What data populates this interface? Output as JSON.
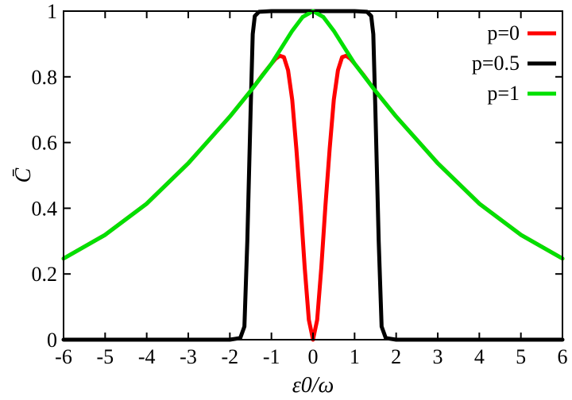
{
  "chart_data": {
    "type": "line",
    "title": "",
    "xlabel": "ε0/ω",
    "ylabel": "C̄",
    "xlim": [
      -6,
      6
    ],
    "ylim": [
      0,
      1
    ],
    "xticks": [
      -6,
      -5,
      -4,
      -3,
      -2,
      -1,
      0,
      1,
      2,
      3,
      4,
      5,
      6
    ],
    "yticks": [
      0,
      0.2,
      0.4,
      0.6,
      0.8,
      1
    ],
    "ytick_labels": [
      "0",
      "0.2",
      "0.4",
      "0.6",
      "0.8",
      "1"
    ],
    "grid": false,
    "legend_position": "top-right",
    "series": [
      {
        "name": "p=0",
        "color": "#ff0000",
        "points": [
          [
            -6,
            0.247
          ],
          [
            -5,
            0.319
          ],
          [
            -4,
            0.414
          ],
          [
            -3,
            0.537
          ],
          [
            -2,
            0.679
          ],
          [
            -1.5,
            0.757
          ],
          [
            -1.2,
            0.808
          ],
          [
            -1,
            0.84
          ],
          [
            -0.9,
            0.855
          ],
          [
            -0.8,
            0.864
          ],
          [
            -0.7,
            0.86
          ],
          [
            -0.6,
            0.82
          ],
          [
            -0.5,
            0.73
          ],
          [
            -0.4,
            0.58
          ],
          [
            -0.3,
            0.41
          ],
          [
            -0.2,
            0.22
          ],
          [
            -0.1,
            0.06
          ],
          [
            0,
            0.0
          ],
          [
            0.1,
            0.06
          ],
          [
            0.2,
            0.22
          ],
          [
            0.3,
            0.41
          ],
          [
            0.4,
            0.58
          ],
          [
            0.5,
            0.73
          ],
          [
            0.6,
            0.82
          ],
          [
            0.7,
            0.86
          ],
          [
            0.8,
            0.864
          ],
          [
            0.9,
            0.855
          ],
          [
            1,
            0.84
          ],
          [
            1.2,
            0.808
          ],
          [
            1.5,
            0.757
          ],
          [
            2,
            0.679
          ],
          [
            3,
            0.537
          ],
          [
            4,
            0.414
          ],
          [
            5,
            0.319
          ],
          [
            6,
            0.247
          ]
        ]
      },
      {
        "name": "p=0.5",
        "color": "#000000",
        "points": [
          [
            -6,
            0.0
          ],
          [
            -2,
            0.0
          ],
          [
            -1.75,
            0.005
          ],
          [
            -1.65,
            0.04
          ],
          [
            -1.58,
            0.3
          ],
          [
            -1.5,
            0.7
          ],
          [
            -1.45,
            0.93
          ],
          [
            -1.4,
            0.985
          ],
          [
            -1.3,
            0.998
          ],
          [
            -1,
            1.0
          ],
          [
            0,
            1.0
          ],
          [
            1,
            1.0
          ],
          [
            1.3,
            0.998
          ],
          [
            1.4,
            0.985
          ],
          [
            1.45,
            0.93
          ],
          [
            1.5,
            0.7
          ],
          [
            1.58,
            0.3
          ],
          [
            1.65,
            0.04
          ],
          [
            1.75,
            0.005
          ],
          [
            2,
            0.0
          ],
          [
            6,
            0.0
          ]
        ]
      },
      {
        "name": "p=1",
        "color": "#00e000",
        "points": [
          [
            -6,
            0.247
          ],
          [
            -5,
            0.319
          ],
          [
            -4,
            0.414
          ],
          [
            -3,
            0.537
          ],
          [
            -2,
            0.679
          ],
          [
            -1.5,
            0.757
          ],
          [
            -1,
            0.84
          ],
          [
            -0.75,
            0.89
          ],
          [
            -0.5,
            0.94
          ],
          [
            -0.25,
            0.982
          ],
          [
            0,
            1.0
          ],
          [
            0.25,
            0.982
          ],
          [
            0.5,
            0.94
          ],
          [
            0.75,
            0.89
          ],
          [
            1,
            0.84
          ],
          [
            1.5,
            0.757
          ],
          [
            2,
            0.679
          ],
          [
            3,
            0.537
          ],
          [
            4,
            0.414
          ],
          [
            5,
            0.319
          ],
          [
            6,
            0.247
          ]
        ]
      }
    ]
  }
}
